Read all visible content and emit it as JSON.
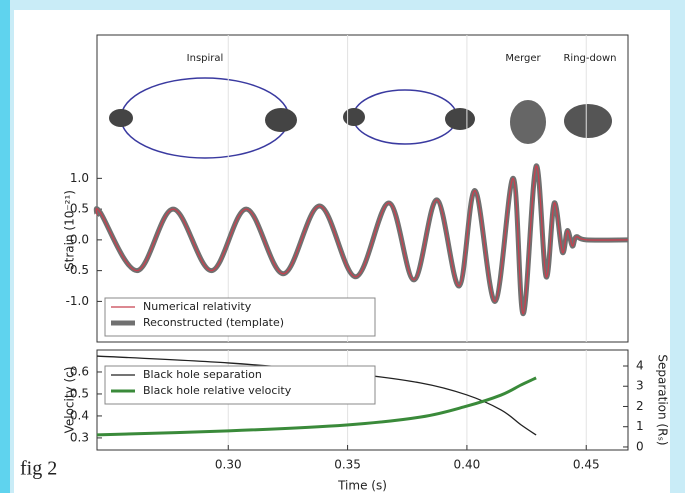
{
  "caption": "fig 2",
  "chart_data": [
    {
      "type": "line",
      "ylabel": "Strain (10⁻²¹)",
      "annotations": [
        "Inspiral",
        "Merger",
        "Ring-down"
      ],
      "xlim": [
        0.245,
        0.4675
      ],
      "ylim": [
        -1.66,
        3.33
      ],
      "yticks": [
        {
          "value": 1.0,
          "label": "1.0"
        },
        0.5,
        {
          "value": 0.0,
          "label": "0.0"
        },
        -0.5,
        {
          "value": -1.0,
          "label": "-1.0"
        }
      ],
      "grid": true,
      "legend": "lower-left",
      "x": [
        0.245,
        0.2463,
        0.2618,
        0.2769,
        0.2929,
        0.3076,
        0.3231,
        0.3383,
        0.3534,
        0.3673,
        0.3778,
        0.3874,
        0.3967,
        0.4034,
        0.4118,
        0.4194,
        0.4236,
        0.429,
        0.4332,
        0.4366,
        0.44,
        0.4421,
        0.4442,
        0.4458,
        0.45,
        0.4675
      ],
      "series": [
        {
          "name": "Reconstructed (template)",
          "color": "#707070",
          "values": [
            0.4,
            0.45,
            -0.5,
            0.5,
            -0.5,
            0.5,
            -0.55,
            0.55,
            -0.6,
            0.6,
            -0.65,
            0.65,
            -0.75,
            0.8,
            -1.0,
            1.0,
            -1.2,
            1.2,
            -0.6,
            0.6,
            -0.2,
            0.15,
            -0.1,
            0.05,
            0,
            0
          ]
        },
        {
          "name": "Numerical relativity",
          "color": "#c8404f",
          "values": [
            0.4,
            0.45,
            -0.5,
            0.5,
            -0.5,
            0.5,
            -0.55,
            0.55,
            -0.6,
            0.6,
            -0.65,
            0.65,
            -0.75,
            0.8,
            -1.0,
            1.0,
            -1.2,
            1.2,
            -0.6,
            0.6,
            -0.2,
            0.15,
            -0.1,
            0.05,
            0,
            0
          ]
        }
      ]
    },
    {
      "type": "line",
      "xlabel": "Time (s)",
      "ylabel": "Velocity (c)",
      "y2label": "Separation (Rₛ)",
      "xlim": [
        0.245,
        0.4675
      ],
      "xticks": [
        {
          "value": 0.3,
          "label": "0.30"
        },
        0.35,
        {
          "value": 0.4,
          "label": "0.40"
        },
        0.45
      ],
      "ylim": [
        0.245,
        0.7
      ],
      "yticks": [
        0.3,
        0.4,
        0.5,
        0.6
      ],
      "y2lim": [
        -0.15,
        4.79
      ],
      "y2ticks": [
        0,
        1,
        2,
        3,
        4
      ],
      "grid": true,
      "legend": "upper-left",
      "x": [
        0.245,
        0.3,
        0.3496,
        0.3807,
        0.4,
        0.4143,
        0.4227,
        0.429
      ],
      "series": [
        {
          "name": "Black hole separation",
          "color": "#222222",
          "axis": "y2",
          "values": [
            4.49,
            4.15,
            3.65,
            3.16,
            2.57,
            1.83,
            1.09,
            0.59
          ]
        },
        {
          "name": "Black hole relative velocity",
          "color": "#3a8a3a",
          "values": [
            0.314,
            0.332,
            0.359,
            0.395,
            0.445,
            0.495,
            0.541,
            0.573
          ]
        }
      ]
    }
  ]
}
